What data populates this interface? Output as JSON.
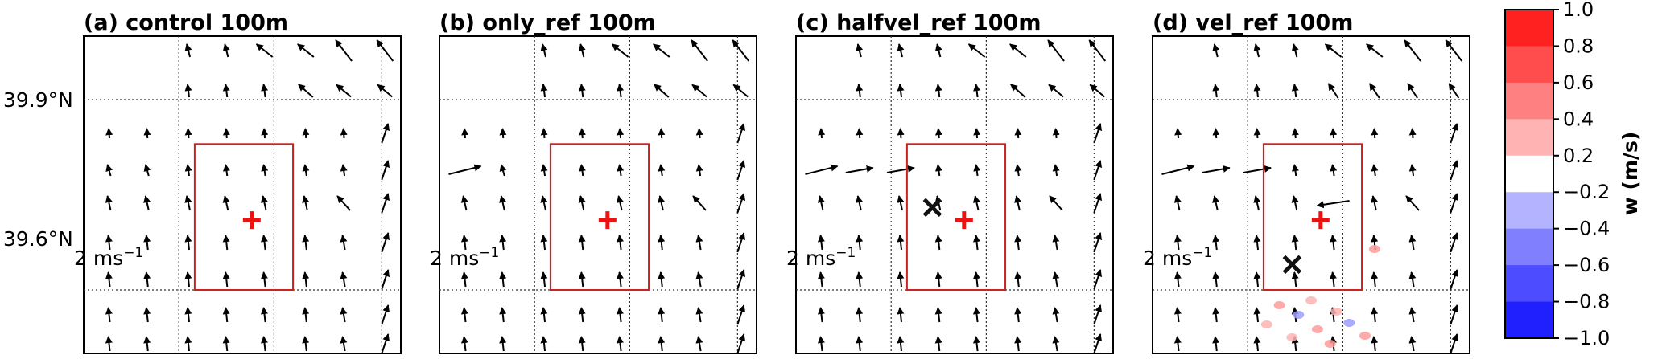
{
  "chart_data": {
    "type": "vector-field",
    "panels": [
      {
        "label": "(a) control  100m",
        "cross_marker": null
      },
      {
        "label": "(b) only_ref  100m",
        "cross_marker": null
      },
      {
        "label": "(c) halfvel_ref  100m",
        "cross_marker": {
          "lon_frac": 0.43,
          "lat_deg": 39.73
        }
      },
      {
        "label": "(d) vel_ref  100m",
        "cross_marker": {
          "lon_frac": 0.44,
          "lat_deg": 39.64
        }
      }
    ],
    "y_ticks": [
      {
        "value": 39.9,
        "label": "39.9°N"
      },
      {
        "value": 39.6,
        "label": "39.6°N"
      }
    ],
    "ylim": [
      39.5,
      40.0
    ],
    "reference_vector_label": "2 ms",
    "reference_vector_exponent": "−1",
    "plus_marker": {
      "lon_frac": 0.53,
      "lat_deg": 39.71
    },
    "box_region": {
      "lon_frac": [
        0.35,
        0.66
      ],
      "lat_deg": [
        39.6,
        39.83
      ]
    },
    "colorbar": {
      "label": "w (m/s)",
      "ticks": [
        "1.0",
        "0.8",
        "0.6",
        "0.4",
        "0.2",
        "−0.2",
        "−0.4",
        "−0.6",
        "−0.8",
        "−1.0"
      ],
      "colors": [
        "#ff2020",
        "#ff4d4d",
        "#ff8080",
        "#ffb3b3",
        "#ffffff",
        "#b3b3ff",
        "#8080ff",
        "#4d4dff",
        "#2020ff"
      ]
    }
  }
}
